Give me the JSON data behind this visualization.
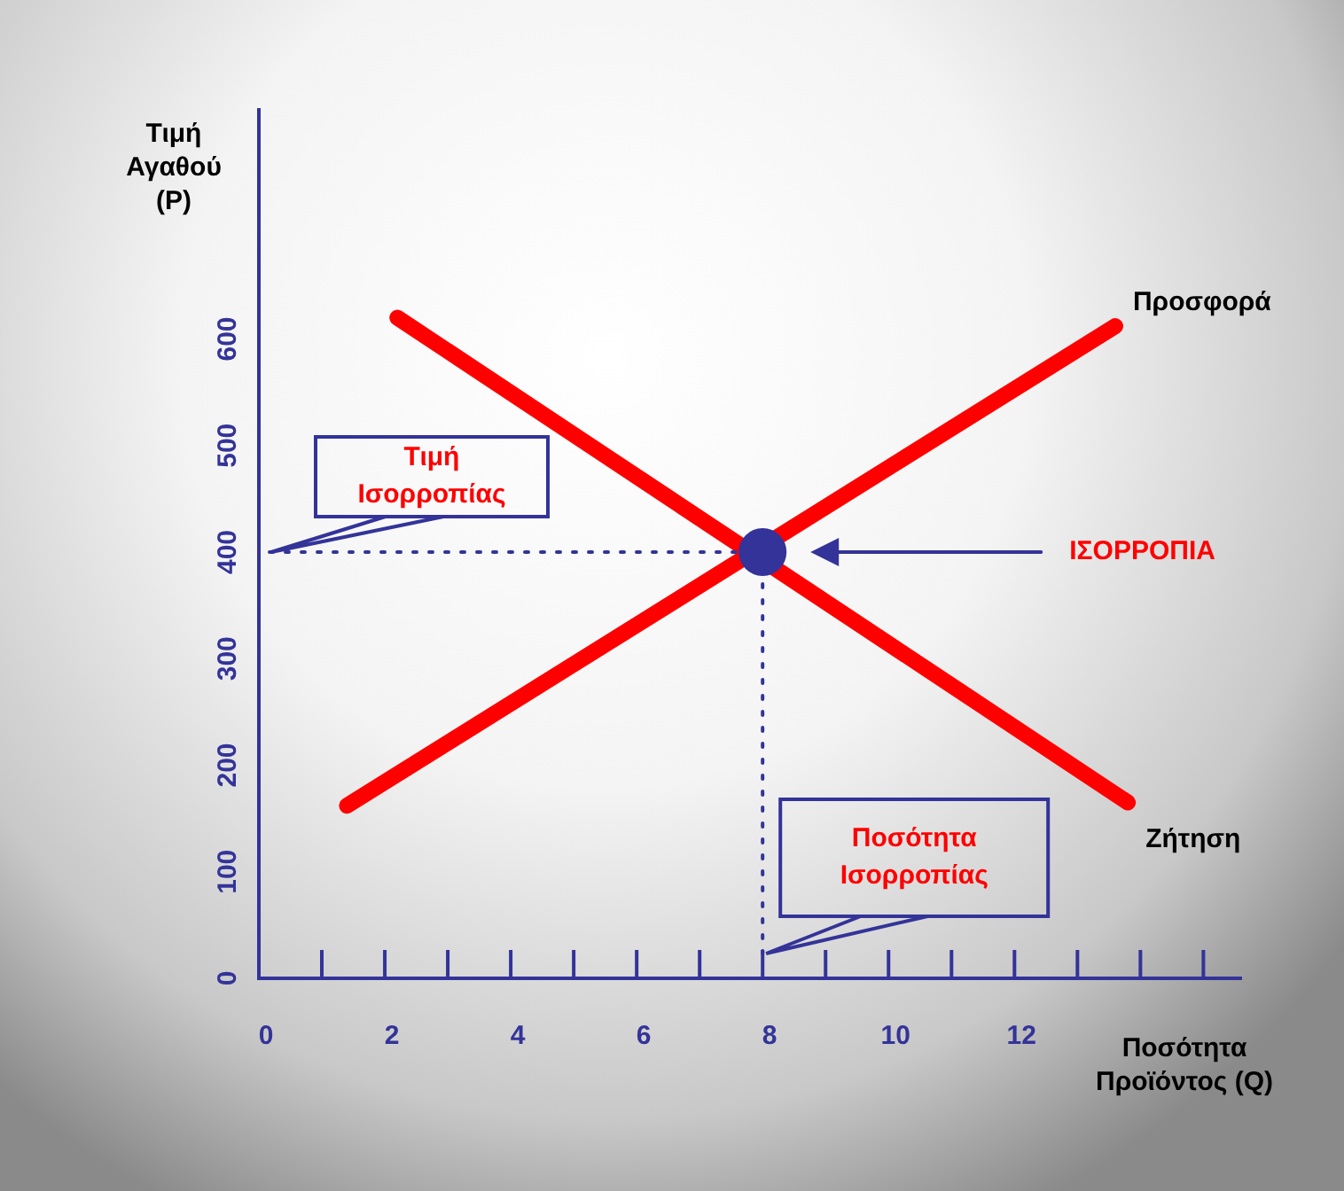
{
  "chart_data": {
    "type": "line",
    "xlabel": "Ποσότητα Προϊόντος (Q)",
    "ylabel": "Τιμή Αγαθού (P)",
    "xlim": [
      0,
      15.6
    ],
    "xticks": [
      0,
      {
        "value": 1,
        "label": null
      },
      2,
      {
        "value": 3,
        "label": null
      },
      4,
      {
        "value": 5,
        "label": null
      },
      6,
      {
        "value": 7,
        "label": null
      },
      8,
      {
        "value": 9,
        "label": null
      },
      10,
      {
        "value": 11,
        "label": null
      },
      12,
      {
        "value": 13,
        "label": null
      },
      {
        "value": 14,
        "label": null
      },
      {
        "value": 15,
        "label": null
      }
    ],
    "ylim": [
      0,
      815
    ],
    "yticks": [
      0,
      100,
      200,
      300,
      400,
      500,
      600
    ],
    "series": [
      {
        "name": "Προσφορά",
        "color": "#ff0000",
        "x": [
          1.4,
          13.6
        ],
        "values": [
          162,
          612
        ]
      },
      {
        "name": "Ζήτηση",
        "color": "#ff0000",
        "x": [
          2.2,
          13.8
        ],
        "values": [
          620,
          165
        ]
      },
      {
        "type": "scatter",
        "marker": "circle",
        "color": "#333399",
        "x": [
          8
        ],
        "values": [
          400
        ]
      }
    ],
    "ref_lines": [
      {
        "axis": "y",
        "value": 400,
        "label": "Τιμή Ισορροπίας",
        "color": "#333399",
        "line_style": "dotted"
      },
      {
        "axis": "x",
        "value": 8,
        "label": "Ποσότητα Ισορροπίας",
        "color": "#333399",
        "line_style": "dotted"
      }
    ],
    "annotations": [
      "ΙΣΟΡΡΟΠΙΑ"
    ],
    "legend": false,
    "grid": false,
    "marker": "none"
  }
}
